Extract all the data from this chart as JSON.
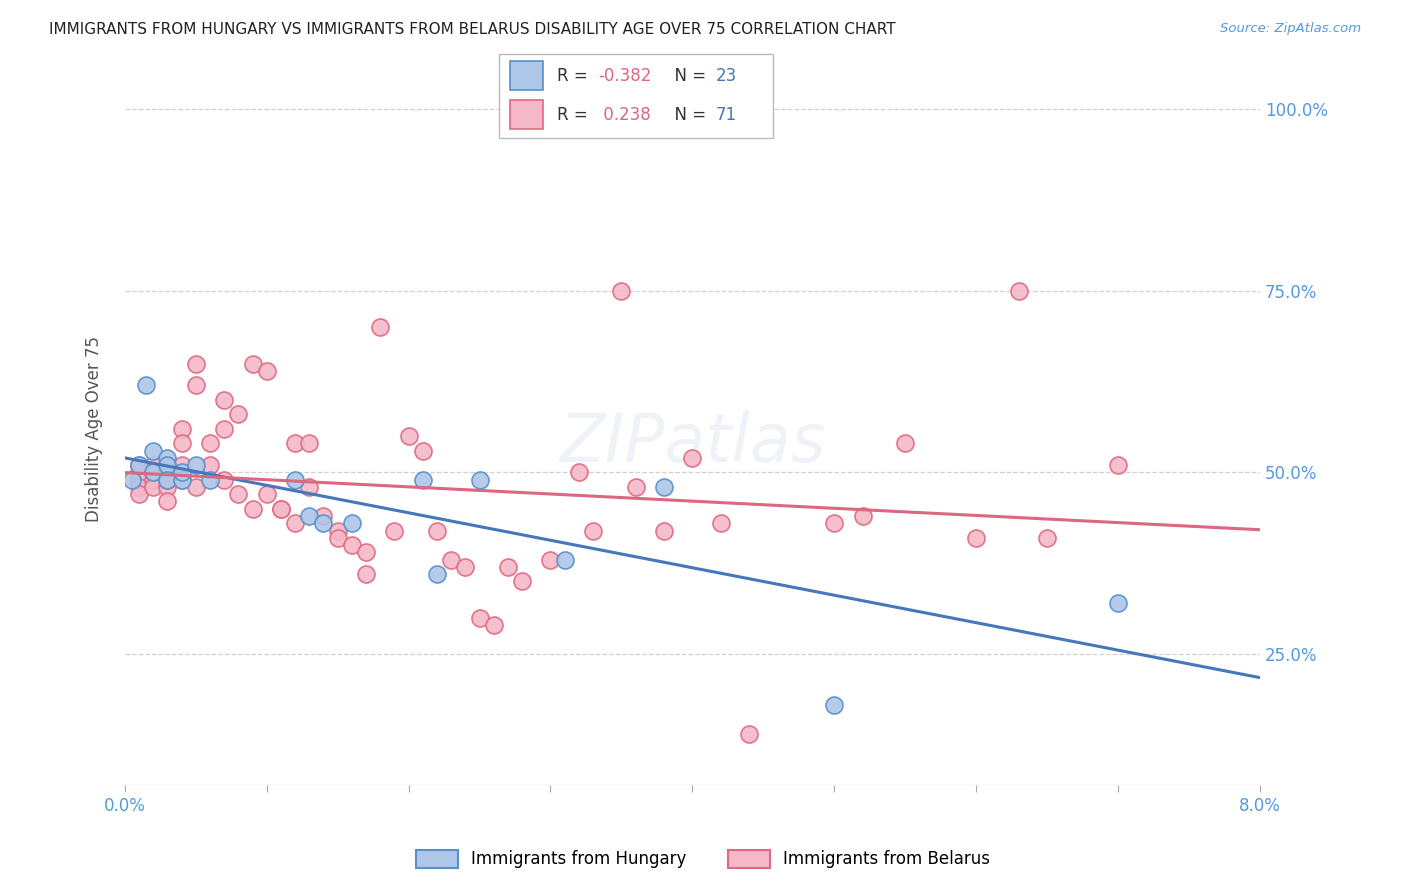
{
  "title": "IMMIGRANTS FROM HUNGARY VS IMMIGRANTS FROM BELARUS DISABILITY AGE OVER 75 CORRELATION CHART",
  "source": "Source: ZipAtlas.com",
  "ylabel": "Disability Age Over 75",
  "ytick_labels": [
    "25.0%",
    "50.0%",
    "75.0%",
    "100.0%"
  ],
  "ytick_values": [
    0.25,
    0.5,
    0.75,
    1.0
  ],
  "xlim": [
    0.0,
    0.08
  ],
  "ylim": [
    0.07,
    1.05
  ],
  "legend_hungary": "Immigrants from Hungary",
  "legend_belarus": "Immigrants from Belarus",
  "R_hungary": -0.382,
  "N_hungary": 23,
  "R_belarus": 0.238,
  "N_belarus": 71,
  "hungary_face_color": "#aec6e8",
  "hungary_edge_color": "#5591cc",
  "belarus_face_color": "#f4b8c8",
  "belarus_edge_color": "#e06882",
  "hungary_line_color": "#4477bb",
  "belarus_line_color": "#dd6680",
  "hungary_x": [
    0.0005,
    0.001,
    0.0015,
    0.002,
    0.002,
    0.003,
    0.003,
    0.003,
    0.004,
    0.004,
    0.005,
    0.006,
    0.012,
    0.013,
    0.014,
    0.016,
    0.021,
    0.022,
    0.025,
    0.031,
    0.038,
    0.05,
    0.07
  ],
  "hungary_y": [
    0.49,
    0.51,
    0.62,
    0.53,
    0.5,
    0.52,
    0.51,
    0.49,
    0.49,
    0.5,
    0.51,
    0.49,
    0.49,
    0.44,
    0.43,
    0.43,
    0.49,
    0.36,
    0.49,
    0.38,
    0.48,
    0.18,
    0.32
  ],
  "belarus_x": [
    0.001,
    0.001,
    0.001,
    0.001,
    0.001,
    0.002,
    0.002,
    0.002,
    0.002,
    0.003,
    0.003,
    0.003,
    0.003,
    0.003,
    0.004,
    0.004,
    0.004,
    0.004,
    0.005,
    0.005,
    0.005,
    0.006,
    0.006,
    0.007,
    0.007,
    0.007,
    0.008,
    0.008,
    0.009,
    0.009,
    0.01,
    0.01,
    0.011,
    0.011,
    0.012,
    0.012,
    0.013,
    0.013,
    0.014,
    0.015,
    0.015,
    0.016,
    0.017,
    0.017,
    0.018,
    0.019,
    0.02,
    0.021,
    0.022,
    0.023,
    0.024,
    0.025,
    0.026,
    0.027,
    0.028,
    0.03,
    0.032,
    0.033,
    0.035,
    0.036,
    0.038,
    0.04,
    0.042,
    0.044,
    0.05,
    0.052,
    0.055,
    0.06,
    0.063,
    0.065,
    0.07
  ],
  "belarus_y": [
    0.5,
    0.49,
    0.48,
    0.51,
    0.47,
    0.51,
    0.49,
    0.48,
    0.5,
    0.51,
    0.48,
    0.5,
    0.49,
    0.46,
    0.56,
    0.54,
    0.51,
    0.49,
    0.65,
    0.62,
    0.48,
    0.54,
    0.51,
    0.6,
    0.56,
    0.49,
    0.58,
    0.47,
    0.45,
    0.65,
    0.64,
    0.47,
    0.45,
    0.45,
    0.43,
    0.54,
    0.54,
    0.48,
    0.44,
    0.42,
    0.41,
    0.4,
    0.39,
    0.36,
    0.7,
    0.42,
    0.55,
    0.53,
    0.42,
    0.38,
    0.37,
    0.3,
    0.29,
    0.37,
    0.35,
    0.38,
    0.5,
    0.42,
    0.75,
    0.48,
    0.42,
    0.52,
    0.43,
    0.14,
    0.43,
    0.44,
    0.54,
    0.41,
    0.75,
    0.41,
    0.51
  ]
}
